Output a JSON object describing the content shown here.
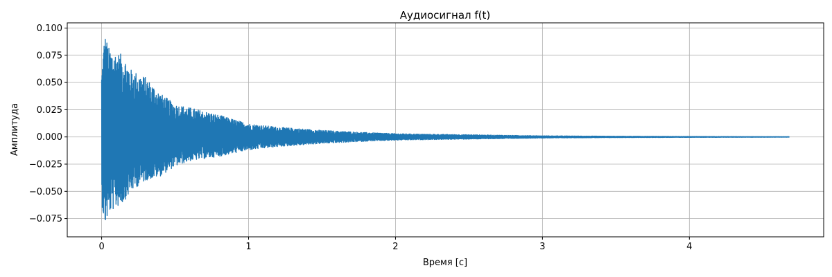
{
  "chart_data": {
    "type": "line",
    "title": "Аудиосигнал f(t)",
    "xlabel": "Время [с]",
    "ylabel": "Амплитуда",
    "xlim": [
      -0.234,
      4.914
    ],
    "ylim": [
      -0.0918,
      0.1048
    ],
    "grid": true,
    "legend": "none",
    "x_ticks": [
      {
        "value": 0,
        "label": "0"
      },
      {
        "value": 1,
        "label": "1"
      },
      {
        "value": 2,
        "label": "2"
      },
      {
        "value": 3,
        "label": "3"
      },
      {
        "value": 4,
        "label": "4"
      }
    ],
    "y_ticks": [
      {
        "value": -0.075,
        "label": "−0.075"
      },
      {
        "value": -0.05,
        "label": "−0.050"
      },
      {
        "value": -0.025,
        "label": "−0.025"
      },
      {
        "value": 0,
        "label": "0.000"
      },
      {
        "value": 0.025,
        "label": "0.025"
      },
      {
        "value": 0.05,
        "label": "0.050"
      },
      {
        "value": 0.075,
        "label": "0.075"
      },
      {
        "value": 0.1,
        "label": "0.100"
      }
    ],
    "series": [
      {
        "color": "#1f77b4",
        "x_range": [
          0,
          4.68
        ],
        "envelope_t": [
          0,
          0.02,
          0.05,
          0.1,
          0.15,
          0.2,
          0.3,
          0.4,
          0.5,
          0.6,
          0.8,
          1.0,
          1.2,
          1.5,
          1.8,
          2.0,
          2.2,
          2.5,
          3.0,
          3.5,
          4.0,
          4.68
        ],
        "envelope_max": [
          0.06,
          0.096,
          0.082,
          0.078,
          0.075,
          0.062,
          0.055,
          0.04,
          0.03,
          0.027,
          0.02,
          0.012,
          0.009,
          0.006,
          0.004,
          0.003,
          0.0025,
          0.002,
          0.001,
          0.0006,
          0.0004,
          0.0002
        ],
        "envelope_min": [
          -0.06,
          -0.083,
          -0.07,
          -0.065,
          -0.06,
          -0.05,
          -0.04,
          -0.036,
          -0.027,
          -0.022,
          -0.018,
          -0.012,
          -0.009,
          -0.006,
          -0.004,
          -0.003,
          -0.0025,
          -0.002,
          -0.001,
          -0.0006,
          -0.0004,
          -0.0002
        ]
      }
    ]
  }
}
